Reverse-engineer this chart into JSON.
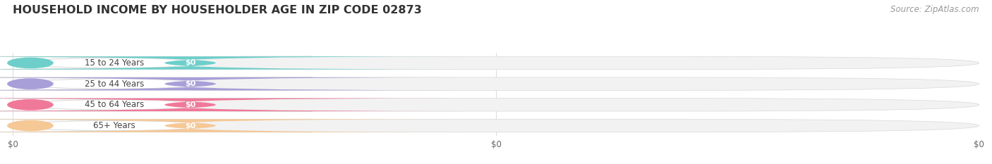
{
  "title": "HOUSEHOLD INCOME BY HOUSEHOLDER AGE IN ZIP CODE 02873",
  "source": "Source: ZipAtlas.com",
  "categories": [
    "15 to 24 Years",
    "25 to 44 Years",
    "45 to 64 Years",
    "65+ Years"
  ],
  "values": [
    0,
    0,
    0,
    0
  ],
  "bar_colors": [
    "#6ecfca",
    "#a89fd8",
    "#f07898",
    "#f5c896"
  ],
  "background_color": "#ffffff",
  "title_fontsize": 11.5,
  "source_fontsize": 8.5,
  "tick_labels": [
    "$0",
    "$0",
    "$0"
  ]
}
